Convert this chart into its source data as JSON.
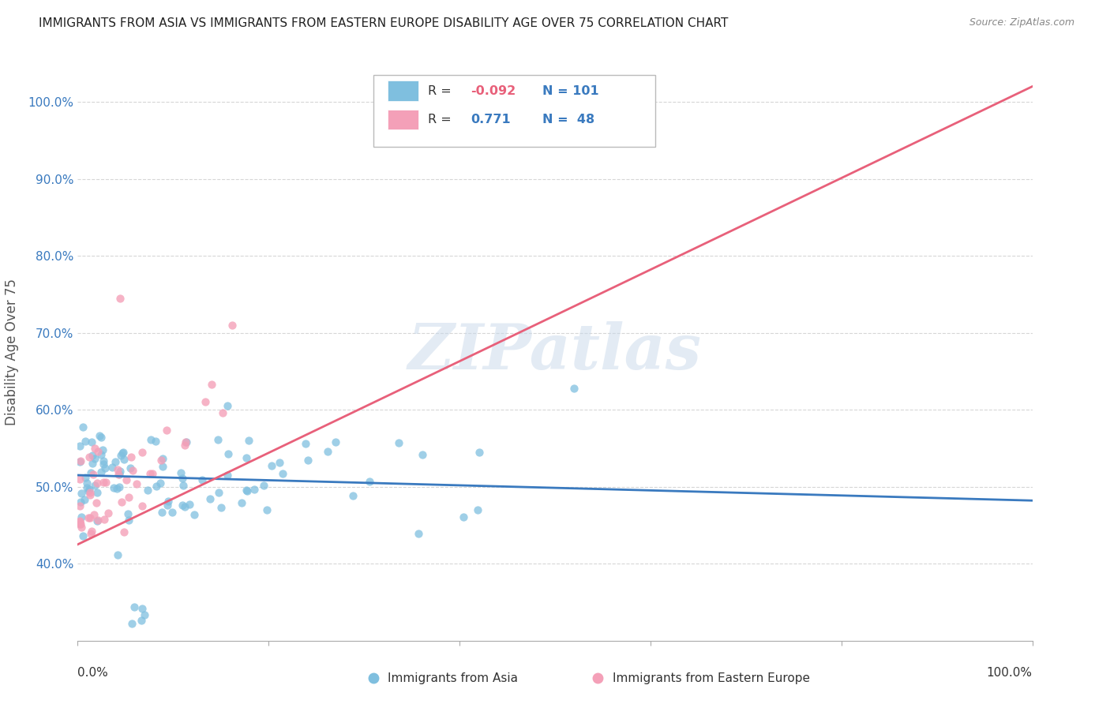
{
  "title": "IMMIGRANTS FROM ASIA VS IMMIGRANTS FROM EASTERN EUROPE DISABILITY AGE OVER 75 CORRELATION CHART",
  "source": "Source: ZipAtlas.com",
  "ylabel": "Disability Age Over 75",
  "legend_label_blue": "Immigrants from Asia",
  "legend_label_pink": "Immigrants from Eastern Europe",
  "legend_r_blue_val": "-0.092",
  "legend_n_blue": "N = 101",
  "legend_r_pink_val": "0.771",
  "legend_n_pink": "N =  48",
  "r_blue": -0.092,
  "n_blue": 101,
  "r_pink": 0.771,
  "n_pink": 48,
  "color_blue": "#7fbfdf",
  "color_blue_line": "#3a7abf",
  "color_pink": "#f4a0b8",
  "color_pink_line": "#e8607a",
  "color_r_neg": "#e8607a",
  "color_r_pos": "#3a7abf",
  "color_n": "#3a7abf",
  "xlim": [
    0.0,
    1.0
  ],
  "ylim": [
    0.3,
    1.05
  ],
  "yticks": [
    0.4,
    0.5,
    0.6,
    0.7,
    0.8,
    0.9,
    1.0
  ],
  "ytick_labels": [
    "40.0%",
    "50.0%",
    "60.0%",
    "70.0%",
    "80.0%",
    "90.0%",
    "100.0%"
  ],
  "grid_color": "#cccccc",
  "watermark": "ZIPatlas",
  "bg_color": "#ffffff",
  "blue_line_x0": 0.0,
  "blue_line_x1": 1.0,
  "blue_line_y0": 0.515,
  "blue_line_y1": 0.482,
  "pink_line_x0": 0.0,
  "pink_line_x1": 1.0,
  "pink_line_y0": 0.425,
  "pink_line_y1": 1.02
}
